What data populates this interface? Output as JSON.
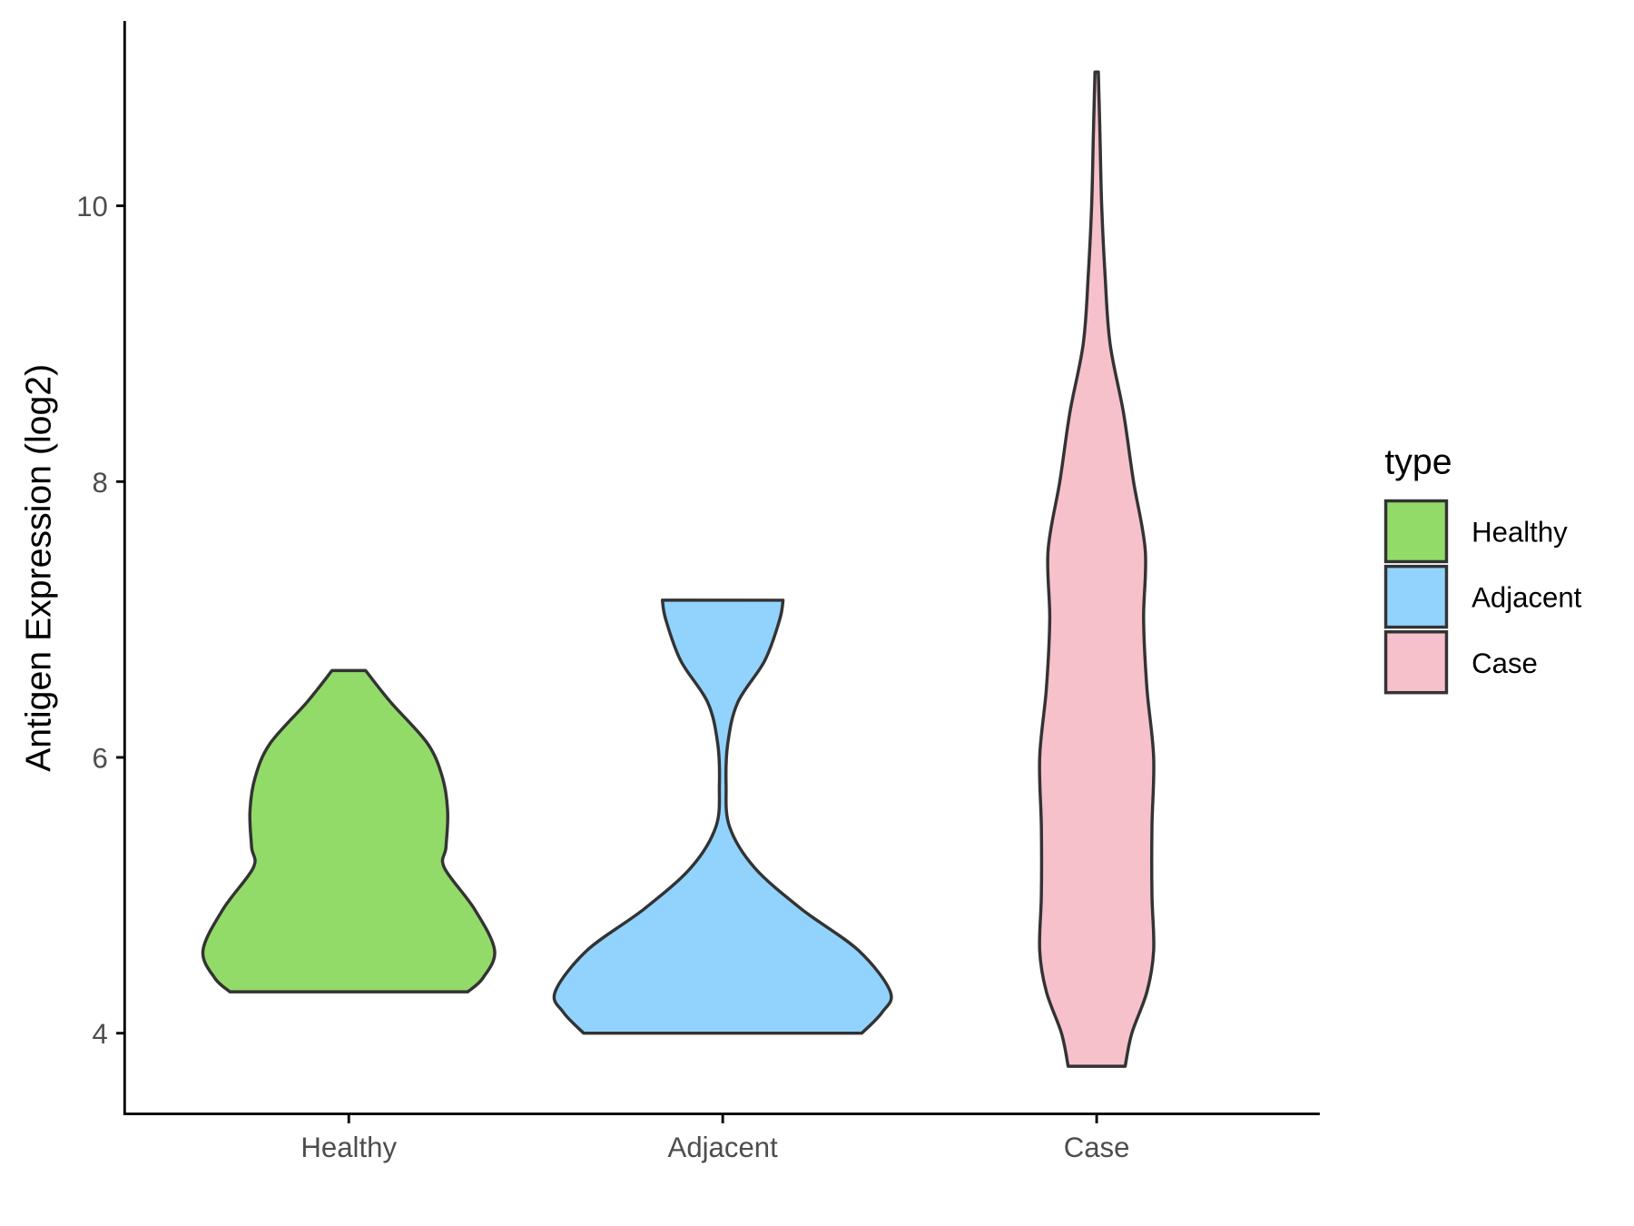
{
  "chart_data": {
    "type": "violin",
    "title": "",
    "xlabel": "",
    "ylabel": "Antigen Expression (log2)",
    "ylim": [
      3.4,
      11.3
    ],
    "yticks": [
      4,
      6,
      8,
      10
    ],
    "ytick_labels": [
      "4",
      "6",
      "8",
      "10"
    ],
    "categories": [
      "Healthy",
      "Adjacent",
      "Case"
    ],
    "grid": false,
    "legend": {
      "title": "type",
      "placement": "right",
      "entries": [
        "Healthy",
        "Adjacent",
        "Case"
      ]
    },
    "series": [
      {
        "name": "Healthy",
        "color": "#93DB69",
        "range": [
          4.3,
          6.63
        ],
        "density": [
          [
            4.3,
            0.71
          ],
          [
            4.4,
            0.8
          ],
          [
            4.6,
            0.87
          ],
          [
            4.9,
            0.75
          ],
          [
            5.2,
            0.57
          ],
          [
            5.35,
            0.58
          ],
          [
            5.6,
            0.59
          ],
          [
            5.85,
            0.56
          ],
          [
            6.1,
            0.47
          ],
          [
            6.4,
            0.25
          ],
          [
            6.63,
            0.1
          ]
        ]
      },
      {
        "name": "Adjacent",
        "color": "#92D3FE",
        "range": [
          4.0,
          7.14
        ],
        "density": [
          [
            4.0,
            0.83
          ],
          [
            4.15,
            0.95
          ],
          [
            4.3,
            1.0
          ],
          [
            4.6,
            0.81
          ],
          [
            4.9,
            0.47
          ],
          [
            5.2,
            0.19
          ],
          [
            5.5,
            0.04
          ],
          [
            5.8,
            0.02
          ],
          [
            6.1,
            0.03
          ],
          [
            6.4,
            0.09
          ],
          [
            6.7,
            0.25
          ],
          [
            7.0,
            0.34
          ],
          [
            7.14,
            0.36
          ]
        ]
      },
      {
        "name": "Case",
        "color": "#F7C1CC",
        "range": [
          3.76,
          10.97
        ],
        "density": [
          [
            3.76,
            0.17
          ],
          [
            4.0,
            0.21
          ],
          [
            4.3,
            0.3
          ],
          [
            4.6,
            0.34
          ],
          [
            5.0,
            0.33
          ],
          [
            5.5,
            0.33
          ],
          [
            6.0,
            0.34
          ],
          [
            6.5,
            0.3
          ],
          [
            7.0,
            0.28
          ],
          [
            7.5,
            0.29
          ],
          [
            8.0,
            0.22
          ],
          [
            8.5,
            0.16
          ],
          [
            9.0,
            0.08
          ],
          [
            9.5,
            0.05
          ],
          [
            10.0,
            0.03
          ],
          [
            10.5,
            0.02
          ],
          [
            10.97,
            0.01
          ]
        ]
      }
    ]
  }
}
